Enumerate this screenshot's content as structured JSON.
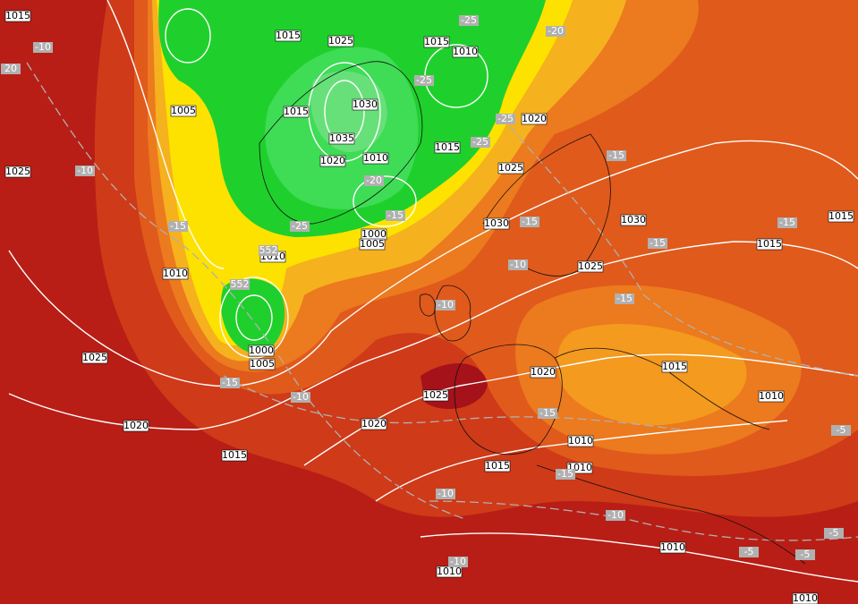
{
  "map": {
    "isobar_labels": [
      "1015",
      "1015",
      "1025",
      "1015",
      "1010",
      "1005",
      "1015",
      "1030",
      "1035",
      "1020",
      "1010",
      "1015",
      "1020",
      "1025",
      "1025",
      "1030",
      "1030",
      "1000",
      "1005",
      "1010",
      "1010",
      "1025",
      "1015",
      "1015",
      "1000",
      "1005",
      "1025",
      "1020",
      "1015",
      "1025",
      "1010",
      "1020",
      "1020",
      "1010",
      "1015",
      "1015",
      "1010",
      "1010",
      "1010",
      "1010"
    ],
    "temperature_labels": [
      "-10",
      "-25",
      "-20",
      "-25",
      "-25",
      "-25",
      "-10",
      "-15",
      "-20",
      "-15",
      "-25",
      "-15",
      "-15",
      "-15",
      "-15",
      "-10",
      "-15",
      "-10",
      "-10",
      "-15",
      "-15",
      "-15",
      "-5",
      "-10",
      "-10",
      "-5",
      "-5",
      "-5",
      "-10",
      "552",
      "552",
      "20"
    ]
  }
}
